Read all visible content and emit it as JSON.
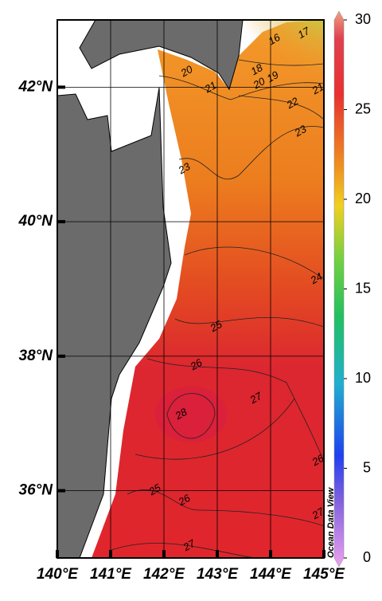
{
  "map": {
    "lon_lim": [
      140,
      145
    ],
    "lat_lim": [
      35,
      43
    ],
    "lon_ticks": [
      {
        "value": 140,
        "label": "140°E"
      },
      {
        "value": 141,
        "label": "141°E"
      },
      {
        "value": 142,
        "label": "142°E"
      },
      {
        "value": 143,
        "label": "143°E"
      },
      {
        "value": 144,
        "label": "144°E"
      },
      {
        "value": 145,
        "label": "145°E"
      }
    ],
    "lat_ticks": [
      {
        "value": 36,
        "label": "36°N"
      },
      {
        "value": 38,
        "label": "38°N"
      },
      {
        "value": 40,
        "label": "40°N"
      },
      {
        "value": 42,
        "label": "42°N"
      }
    ],
    "colorbar": {
      "lim": [
        0,
        30
      ],
      "ticks": [
        0,
        5,
        10,
        15,
        20,
        25,
        30
      ]
    },
    "contour_labels": [
      20,
      21,
      16,
      17,
      18,
      19,
      20,
      21,
      22,
      23,
      23,
      24,
      25,
      26,
      27,
      28,
      26,
      25,
      26,
      27,
      27
    ],
    "watermark": "Ocean Data View"
  }
}
